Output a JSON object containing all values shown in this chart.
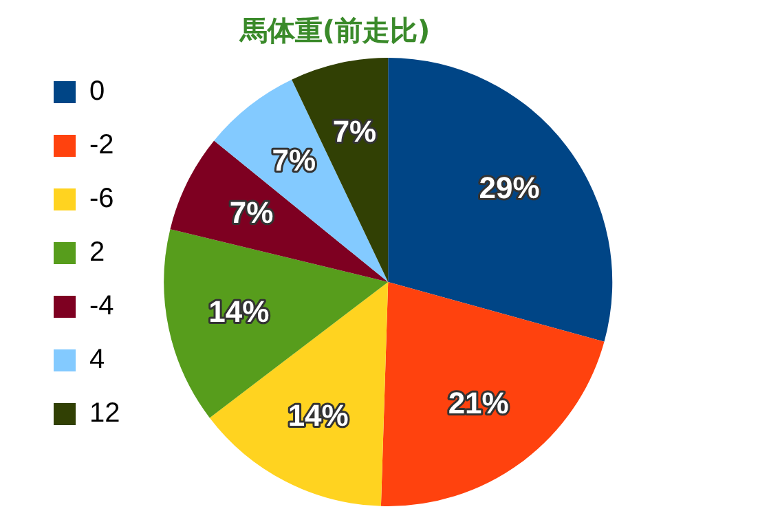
{
  "chart_data": {
    "type": "pie",
    "title": "馬体重(前走比)",
    "categories": [
      "0",
      "-2",
      "-6",
      "2",
      "-4",
      "4",
      "12"
    ],
    "values": [
      29,
      21,
      14,
      14,
      7,
      7,
      7
    ],
    "value_labels": [
      "29%",
      "21%",
      "14%",
      "14%",
      "7%",
      "7%",
      "7%"
    ],
    "colors": [
      "#004586",
      "#ff420e",
      "#ffd320",
      "#579d1c",
      "#7e0021",
      "#83caff",
      "#314004"
    ],
    "legend": "left"
  }
}
